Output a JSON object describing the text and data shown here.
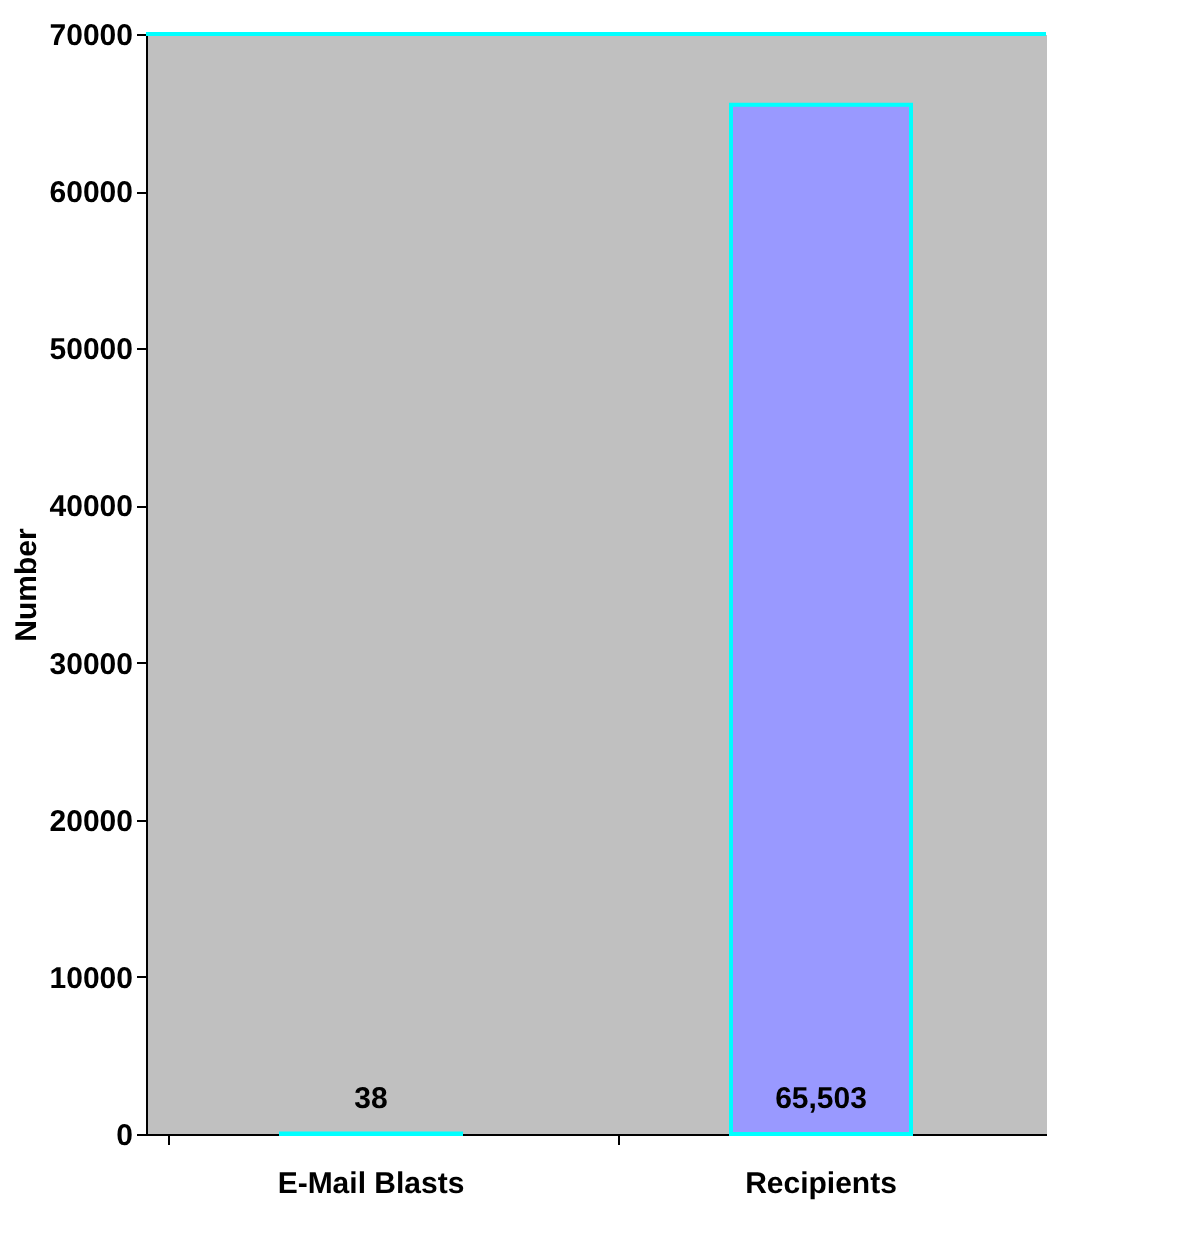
{
  "chart_data": {
    "type": "bar",
    "ylabel": "Number",
    "categories": [
      "E-Mail Blasts",
      "Recipients"
    ],
    "values": [
      38,
      65503
    ],
    "value_labels": [
      "38",
      "65,503"
    ],
    "colors": [
      "#9999ff",
      "#9999ff"
    ],
    "ylim": [
      0,
      70000
    ],
    "yticks": [
      0,
      10000,
      20000,
      30000,
      40000,
      50000,
      60000,
      70000
    ],
    "grid": false
  }
}
